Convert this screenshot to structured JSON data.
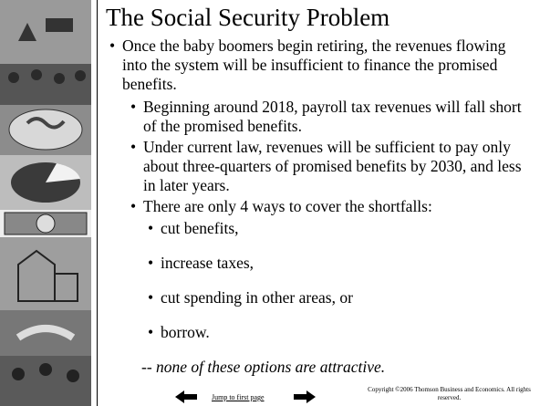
{
  "slide": {
    "title": "The Social Security Problem",
    "bullets": [
      {
        "text": "Once the baby boomers begin retiring, the revenues flowing into the system will be insufficient to finance the promised benefits.",
        "sub": [
          {
            "text": "Beginning around 2018, payroll tax revenues will fall short of the promised benefits."
          },
          {
            "text": "Under current law, revenues will be sufficient to pay only about three-quarters of promised benefits by 2030, and less in later years."
          },
          {
            "text": "There are only 4 ways to cover the shortfalls:",
            "sub": [
              "cut benefits,",
              "increase taxes,",
              "cut spending in other areas, or",
              "borrow."
            ]
          }
        ]
      }
    ],
    "note": "-- none of these options are attractive.",
    "footer": {
      "link": "Jump to first page",
      "copyright": "Copyright ©2006  Thomson Business and Economics. All rights reserved."
    }
  }
}
